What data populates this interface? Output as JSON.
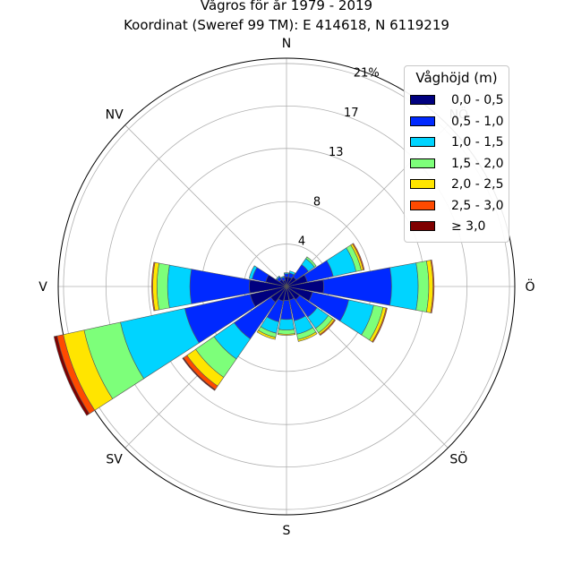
{
  "chart_data": {
    "type": "windrose",
    "title": "Vågros för år 1979 - 2019",
    "subtitle": "Koordinat (Sweref 99 TM): E 414618, N 6119219",
    "directions": [
      "N",
      "NNÖ",
      "NÖ",
      "ÖNÖ",
      "Ö",
      "ÖSÖ",
      "SÖ",
      "SSÖ",
      "S",
      "SSV",
      "SV",
      "VSV",
      "V",
      "VNV",
      "NV",
      "NNV"
    ],
    "compass_labels": [
      "N",
      "NÖ",
      "Ö",
      "SÖ",
      "S",
      "SV",
      "V",
      "NV"
    ],
    "radial_ticks": [
      "4",
      "8",
      "13",
      "17",
      "21%"
    ],
    "rmax": 21.5,
    "legend_title": "Våghöjd (m)",
    "legend_position": "top-right",
    "grid": true,
    "series": [
      {
        "name": "0,0 - 0,5",
        "color": "#00007f",
        "values": [
          0.9,
          0.9,
          1.1,
          2.0,
          3.5,
          2.5,
          1.5,
          1.3,
          1.3,
          1.4,
          1.8,
          3.5,
          3.5,
          2.0,
          0.8,
          0.6
        ]
      },
      {
        "name": "0,5 - 1,0",
        "color": "#0029ff",
        "values": [
          0.3,
          0.4,
          1.4,
          2.5,
          6.4,
          3.5,
          2.0,
          2.0,
          1.8,
          2.0,
          4.2,
          6.3,
          5.6,
          1.3,
          0.3,
          0.3
        ]
      },
      {
        "name": "1,0 - 1,5",
        "color": "#00d4ff",
        "values": [
          0.1,
          0.2,
          0.7,
          2.2,
          2.5,
          2.4,
          1.3,
          1.3,
          1.0,
          1.1,
          2.3,
          6.2,
          2.1,
          0.3,
          0.1,
          0.1
        ]
      },
      {
        "name": "1,5 - 2,0",
        "color": "#7dff7a",
        "values": [
          0.0,
          0.0,
          0.2,
          0.5,
          1.0,
          0.9,
          0.5,
          0.5,
          0.4,
          0.4,
          2.1,
          3.5,
          1.0,
          0.0,
          0.0,
          0.0
        ]
      },
      {
        "name": "2,0 - 2,5",
        "color": "#ffe500",
        "values": [
          0.0,
          0.0,
          0.0,
          0.2,
          0.4,
          0.3,
          0.2,
          0.2,
          0.1,
          0.2,
          1.0,
          2.0,
          0.4,
          0.0,
          0.0,
          0.0
        ]
      },
      {
        "name": "2,5 - 3,0",
        "color": "#ff4a00",
        "values": [
          0.0,
          0.0,
          0.0,
          0.1,
          0.1,
          0.1,
          0.1,
          0.0,
          0.0,
          0.0,
          0.4,
          0.6,
          0.1,
          0.0,
          0.0,
          0.0
        ]
      },
      {
        "name": "≥ 3,0",
        "color": "#7f0000",
        "values": [
          0.0,
          0.0,
          0.0,
          0.0,
          0.0,
          0.0,
          0.0,
          0.0,
          0.0,
          0.0,
          0.1,
          0.3,
          0.0,
          0.0,
          0.0,
          0.0
        ]
      }
    ]
  }
}
